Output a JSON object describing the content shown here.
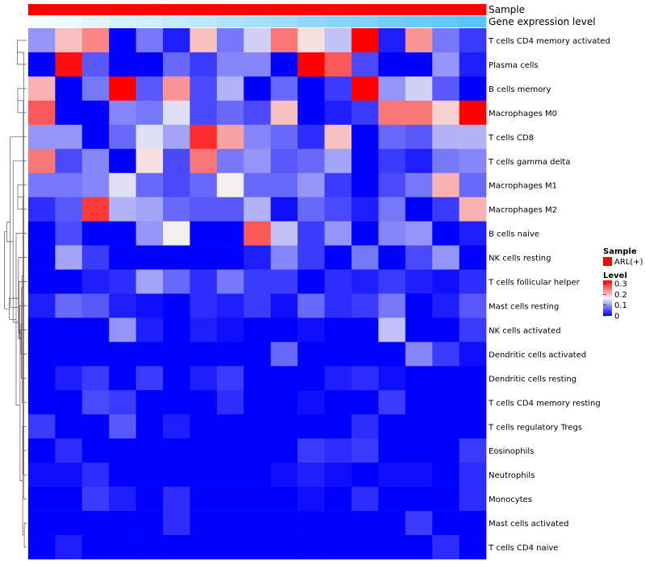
{
  "chart_data": {
    "type": "heatmap",
    "title": "",
    "annotation_rows": [
      "Sample",
      "Gene expression level"
    ],
    "rows": [
      "T cells CD4 memory activated",
      "Plasma cells",
      "B cells memory",
      "Macrophages M0",
      "T cells CD8",
      "T cells gamma delta",
      "Macrophages M1",
      "Macrophages M2",
      "B cells naive",
      "NK cells resting",
      "T cells follicular helper",
      "Mast cells resting",
      "NK cells activated",
      "Dendritic cells activated",
      "Dendritic cells resting",
      "T cells CD4 memory resting",
      "T cells regulatory  Tregs",
      "Eosinophils",
      "Neutrophils",
      "Monocytes",
      "Mast cells activated",
      "T cells CD4 naive"
    ],
    "values": [
      [
        0.1,
        0.2,
        0.24,
        0.0,
        0.08,
        0.02,
        0.2,
        0.08,
        0.14,
        0.25,
        0.18,
        0.13,
        0.33,
        0.02,
        0.23,
        0.08,
        0.04
      ],
      [
        0.0,
        0.32,
        0.06,
        0.0,
        0.0,
        0.07,
        0.04,
        0.09,
        0.09,
        0.0,
        0.33,
        0.27,
        0.05,
        0.0,
        0.0,
        0.1,
        0.02
      ],
      [
        0.21,
        0.0,
        0.08,
        0.33,
        0.06,
        0.23,
        0.05,
        0.12,
        0.0,
        0.07,
        0.0,
        0.04,
        0.33,
        0.1,
        0.14,
        0.06,
        0.0
      ],
      [
        0.27,
        0.0,
        0.0,
        0.09,
        0.08,
        0.15,
        0.05,
        0.07,
        0.05,
        0.2,
        0.0,
        0.02,
        0.04,
        0.25,
        0.25,
        0.19,
        0.33
      ],
      [
        0.1,
        0.1,
        0.0,
        0.07,
        0.15,
        0.11,
        0.3,
        0.22,
        0.09,
        0.07,
        0.03,
        0.2,
        0.0,
        0.07,
        0.06,
        0.12,
        0.12
      ],
      [
        0.25,
        0.05,
        0.09,
        0.0,
        0.18,
        0.05,
        0.25,
        0.08,
        0.1,
        0.06,
        0.07,
        0.11,
        0.0,
        0.04,
        0.02,
        0.08,
        0.09
      ],
      [
        0.08,
        0.08,
        0.09,
        0.15,
        0.07,
        0.05,
        0.07,
        0.17,
        0.07,
        0.07,
        0.1,
        0.04,
        0.0,
        0.05,
        0.08,
        0.21,
        0.07
      ],
      [
        0.03,
        0.06,
        0.29,
        0.12,
        0.11,
        0.07,
        0.06,
        0.06,
        0.12,
        0.01,
        0.07,
        0.05,
        0.02,
        0.08,
        0.0,
        0.04,
        0.21
      ],
      [
        0.0,
        0.05,
        0.0,
        0.0,
        0.1,
        0.17,
        0.0,
        0.0,
        0.27,
        0.13,
        0.04,
        0.1,
        0.0,
        0.09,
        0.1,
        0.0,
        0.02
      ],
      [
        0.0,
        0.11,
        0.04,
        0.0,
        0.0,
        0.0,
        0.0,
        0.0,
        0.02,
        0.09,
        0.04,
        0.0,
        0.08,
        0.0,
        0.05,
        0.1,
        0.0
      ],
      [
        0.0,
        0.0,
        0.02,
        0.03,
        0.11,
        0.07,
        0.03,
        0.08,
        0.04,
        0.04,
        0.0,
        0.03,
        0.02,
        0.04,
        0.02,
        0.01,
        0.03
      ],
      [
        0.02,
        0.07,
        0.06,
        0.02,
        0.01,
        0.0,
        0.03,
        0.02,
        0.04,
        0.01,
        0.07,
        0.03,
        0.04,
        0.08,
        0.0,
        0.02,
        0.06
      ],
      [
        0.0,
        0.0,
        0.0,
        0.1,
        0.02,
        0.0,
        0.02,
        0.01,
        0.0,
        0.0,
        0.01,
        0.0,
        0.0,
        0.13,
        0.0,
        0.0,
        0.04
      ],
      [
        0.0,
        0.0,
        0.0,
        0.0,
        0.0,
        0.0,
        0.0,
        0.0,
        0.0,
        0.07,
        0.0,
        0.0,
        0.0,
        0.0,
        0.09,
        0.04,
        0.01
      ],
      [
        0.0,
        0.02,
        0.04,
        0.0,
        0.04,
        0.0,
        0.02,
        0.04,
        0.0,
        0.0,
        0.0,
        0.02,
        0.03,
        0.01,
        0.0,
        0.0,
        0.0
      ],
      [
        0.0,
        0.0,
        0.05,
        0.04,
        0.0,
        0.0,
        0.0,
        0.03,
        0.0,
        0.0,
        0.01,
        0.0,
        0.0,
        0.04,
        0.0,
        0.0,
        0.0
      ],
      [
        0.04,
        0.0,
        0.0,
        0.06,
        0.0,
        0.02,
        0.0,
        0.0,
        0.0,
        0.0,
        0.0,
        0.0,
        0.03,
        0.0,
        0.0,
        0.0,
        0.0
      ],
      [
        0.0,
        0.03,
        0.0,
        0.0,
        0.0,
        0.0,
        0.0,
        0.0,
        0.0,
        0.0,
        0.04,
        0.03,
        0.04,
        0.0,
        0.0,
        0.0,
        0.04
      ],
      [
        0.01,
        0.01,
        0.03,
        0.0,
        0.0,
        0.0,
        0.0,
        0.0,
        0.0,
        0.01,
        0.02,
        0.01,
        0.0,
        0.01,
        0.01,
        0.0,
        0.03
      ],
      [
        0.0,
        0.0,
        0.04,
        0.02,
        0.0,
        0.03,
        0.0,
        0.0,
        0.0,
        0.0,
        0.01,
        0.0,
        0.03,
        0.0,
        0.0,
        0.0,
        0.03
      ],
      [
        0.0,
        0.0,
        0.0,
        0.0,
        0.0,
        0.03,
        0.0,
        0.0,
        0.0,
        0.0,
        0.0,
        0.0,
        0.0,
        0.0,
        0.04,
        0.0,
        0.0
      ],
      [
        0.0,
        0.02,
        0.0,
        0.0,
        0.0,
        0.0,
        0.0,
        0.0,
        0.0,
        0.0,
        0.0,
        0.0,
        0.0,
        0.0,
        0.0,
        0.03,
        0.0
      ]
    ],
    "gene_expression_level": [
      0.0,
      0.06,
      0.12,
      0.18,
      0.24,
      0.3,
      0.36,
      0.42,
      0.48,
      0.54,
      0.6,
      0.66,
      0.72,
      0.78,
      0.84,
      0.9,
      0.96
    ],
    "color_scale": {
      "min": 0,
      "max": 0.33,
      "low": "#0000FF",
      "mid": "#F5F5F5",
      "high": "#FF0000",
      "mid_value": 0.165,
      "ticks": [
        "0",
        "0.1",
        "0.2",
        "0.3"
      ],
      "tick_values": [
        0,
        0.1,
        0.2,
        0.3
      ]
    },
    "expression_scale": {
      "low": "#F4FBFF",
      "high": "#4FC3F7"
    },
    "legend": {
      "position": "right",
      "sample_title": "Sample",
      "sample_entry": "ARL(+)",
      "sample_color": "#FF0000",
      "level_title": "Level"
    }
  }
}
